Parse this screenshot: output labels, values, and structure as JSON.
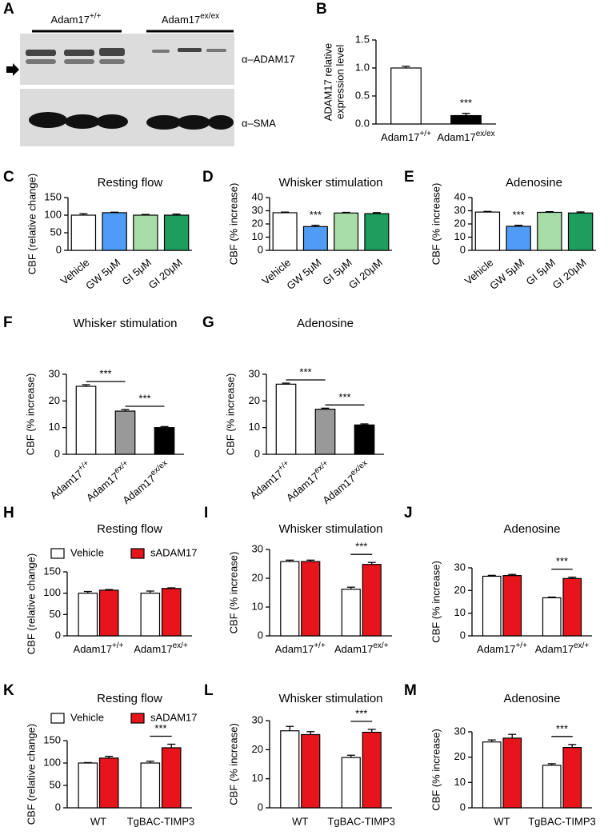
{
  "blot": {
    "panel": "A",
    "groups": [
      "Adam17+/+",
      "Adam17ex/ex"
    ],
    "bands": [
      "α–ADAM17",
      "α–SMA"
    ]
  },
  "chart_data": [
    {
      "panel": "B",
      "type": "bar",
      "ylabel": [
        "ADAM17 relative",
        "expression level"
      ],
      "categories": [
        "Adam17+/+",
        "Adam17ex/ex"
      ],
      "values": [
        1.0,
        0.15
      ],
      "errors": [
        0.03,
        0.04
      ],
      "colors": [
        "#ffffff",
        "#000000"
      ],
      "ylim": [
        0,
        1.5
      ],
      "yticks": [
        {
          "value": 0,
          "label": "0.0"
        },
        0.5,
        {
          "value": 1,
          "label": "1.0"
        },
        1.5
      ],
      "annotations": [
        {
          "text": "***",
          "categories": [
            1
          ]
        }
      ]
    },
    {
      "panel": "C",
      "type": "bar",
      "title": "Resting flow",
      "ylabel": "CBF (relative change)",
      "categories": [
        "Vehicle",
        "GW 5μM",
        "GI 5μM",
        "GI 20μM"
      ],
      "values": [
        100,
        107,
        100,
        100
      ],
      "errors": [
        4,
        1.5,
        2,
        3
      ],
      "colors": [
        "#ffffff",
        "#4f9bf5",
        "#a8dca8",
        "#1e9e5e"
      ],
      "ylim": [
        0,
        150
      ],
      "yticks": [
        0,
        50,
        100,
        150
      ]
    },
    {
      "panel": "D",
      "type": "bar",
      "title": "Whisker stimulation",
      "ylabel": "CBF (% increase)",
      "categories": [
        "Vehicle",
        "GW 5μM",
        "GI 5μM",
        "GI 20μM"
      ],
      "values": [
        28.5,
        18,
        28.3,
        27.8
      ],
      "errors": [
        0.5,
        1,
        0.5,
        0.8
      ],
      "colors": [
        "#ffffff",
        "#4f9bf5",
        "#a8dca8",
        "#1e9e5e"
      ],
      "ylim": [
        0,
        40
      ],
      "yticks": [
        0,
        10,
        20,
        30,
        40
      ],
      "annotations": [
        {
          "text": "***",
          "categories": [
            1
          ]
        }
      ]
    },
    {
      "panel": "E",
      "type": "bar",
      "title": "Adenosine",
      "ylabel": "CBF (% increase)",
      "categories": [
        "Vehicle",
        "GW 5μM",
        "GI 5μM",
        "GI 20μM"
      ],
      "values": [
        29,
        18.2,
        28.8,
        28.3
      ],
      "errors": [
        0.5,
        0.8,
        0.5,
        0.8
      ],
      "colors": [
        "#ffffff",
        "#4f9bf5",
        "#a8dca8",
        "#1e9e5e"
      ],
      "ylim": [
        0,
        40
      ],
      "yticks": [
        0,
        10,
        20,
        30,
        40
      ],
      "annotations": [
        {
          "text": "***",
          "categories": [
            1
          ]
        }
      ]
    },
    {
      "panel": "F",
      "type": "bar",
      "title": "Whisker stimulation",
      "ylabel": "CBF (%  increase)",
      "categories": [
        "Adam17+/+",
        "Adam17ex/+",
        "Adam17ex/ex"
      ],
      "values": [
        25.5,
        16.2,
        10
      ],
      "errors": [
        0.6,
        0.6,
        0.4
      ],
      "colors": [
        "#ffffff",
        "#999999",
        "#000000"
      ],
      "ylim": [
        0,
        30
      ],
      "yticks": [
        0,
        10,
        20,
        30
      ],
      "annotations": [
        {
          "text": "***",
          "categories": [
            0,
            1
          ]
        },
        {
          "text": "***",
          "categories": [
            1,
            2
          ]
        }
      ]
    },
    {
      "panel": "G",
      "type": "bar",
      "title": "Adenosine",
      "ylabel": "CBF (%  increase)",
      "categories": [
        "Adam17+/+",
        "Adam17ex/+",
        "Adam17ex/ex"
      ],
      "values": [
        26.3,
        16.9,
        11
      ],
      "errors": [
        0.4,
        0.4,
        0.4
      ],
      "colors": [
        "#ffffff",
        "#999999",
        "#000000"
      ],
      "ylim": [
        0,
        30
      ],
      "yticks": [
        0,
        10,
        20,
        30
      ],
      "annotations": [
        {
          "text": "***",
          "categories": [
            0,
            1
          ]
        },
        {
          "text": "***",
          "categories": [
            1,
            2
          ]
        }
      ]
    },
    {
      "panel": "H",
      "type": "grouped_bar",
      "title": "Resting flow",
      "ylabel": "CBF (relative change)",
      "legend": true,
      "categories": [
        "Adam17+/+",
        "Adam17ex/+"
      ],
      "series": [
        {
          "name": "Vehicle",
          "color": "#ffffff",
          "values": [
            100,
            100
          ],
          "errors": [
            4,
            5
          ]
        },
        {
          "name": "sADAM17",
          "color": "#e8141c",
          "values": [
            107,
            111
          ],
          "errors": [
            1.5,
            1.5
          ]
        }
      ],
      "ylim": [
        0,
        150
      ],
      "yticks": [
        0,
        50,
        100,
        150
      ]
    },
    {
      "panel": "I",
      "type": "grouped_bar",
      "title": "Whisker stimulation",
      "ylabel": "CBF (% increase)",
      "categories": [
        "Adam17+/+",
        "Adam17ex/+"
      ],
      "series": [
        {
          "name": "Vehicle",
          "color": "#ffffff",
          "values": [
            25.8,
            16.2
          ],
          "errors": [
            0.5,
            0.7
          ]
        },
        {
          "name": "sADAM17",
          "color": "#e8141c",
          "values": [
            25.8,
            24.8
          ],
          "errors": [
            0.5,
            0.7
          ]
        }
      ],
      "ylim": [
        0,
        30
      ],
      "yticks": [
        0,
        10,
        20,
        30
      ],
      "annotations": [
        {
          "text": "***",
          "categories": [
            1
          ]
        }
      ]
    },
    {
      "panel": "J",
      "type": "grouped_bar",
      "title": "Adenosine",
      "ylabel": "CBF (% increase)",
      "categories": [
        "Adam17+/+",
        "Adam17ex/+"
      ],
      "series": [
        {
          "name": "Vehicle",
          "color": "#ffffff",
          "values": [
            26.3,
            16.8
          ],
          "errors": [
            0.4,
            0.3
          ]
        },
        {
          "name": "sADAM17",
          "color": "#e8141c",
          "values": [
            26.6,
            25.3
          ],
          "errors": [
            0.5,
            0.6
          ]
        }
      ],
      "ylim": [
        0,
        30
      ],
      "yticks": [
        0,
        10,
        20,
        30
      ],
      "annotations": [
        {
          "text": "***",
          "categories": [
            1
          ]
        }
      ]
    },
    {
      "panel": "K",
      "type": "grouped_bar",
      "title": "Resting flow",
      "ylabel": "CBF (relative change)",
      "legend": true,
      "categories": [
        "WT",
        "TgBAC-TIMP3"
      ],
      "series": [
        {
          "name": "Vehicle",
          "color": "#ffffff",
          "values": [
            100,
            100
          ],
          "errors": [
            1,
            4
          ]
        },
        {
          "name": "sADAM17",
          "color": "#e8141c",
          "values": [
            111,
            134
          ],
          "errors": [
            4,
            8
          ]
        }
      ],
      "ylim": [
        0,
        150
      ],
      "yticks": [
        0,
        50,
        100,
        150
      ],
      "annotations": [
        {
          "text": "***",
          "categories": [
            1
          ]
        }
      ]
    },
    {
      "panel": "L",
      "type": "grouped_bar",
      "title": "Whisker stimulation",
      "ylabel": "CBF (% increase)",
      "categories": [
        "WT",
        "TgBAC-TIMP3"
      ],
      "series": [
        {
          "name": "Vehicle",
          "color": "#ffffff",
          "values": [
            26.5,
            17.3
          ],
          "errors": [
            1.5,
            0.8
          ]
        },
        {
          "name": "sADAM17",
          "color": "#e8141c",
          "values": [
            25.2,
            26
          ],
          "errors": [
            1,
            1
          ]
        }
      ],
      "ylim": [
        0,
        30
      ],
      "yticks": [
        0,
        10,
        20,
        30
      ],
      "annotations": [
        {
          "text": "***",
          "categories": [
            1
          ]
        }
      ]
    },
    {
      "panel": "M",
      "type": "grouped_bar",
      "title": "Adenosine",
      "ylabel": "CBF (% increase)",
      "categories": [
        "WT",
        "TgBAC-TIMP3"
      ],
      "series": [
        {
          "name": "Vehicle",
          "color": "#ffffff",
          "values": [
            26,
            16.8
          ],
          "errors": [
            0.8,
            0.6
          ]
        },
        {
          "name": "sADAM17",
          "color": "#e8141c",
          "values": [
            27.5,
            23.8
          ],
          "errors": [
            1.5,
            1.2
          ]
        }
      ],
      "ylim": [
        0,
        30
      ],
      "yticks": [
        0,
        10,
        20,
        30
      ],
      "annotations": [
        {
          "text": "***",
          "categories": [
            1
          ]
        }
      ]
    }
  ]
}
